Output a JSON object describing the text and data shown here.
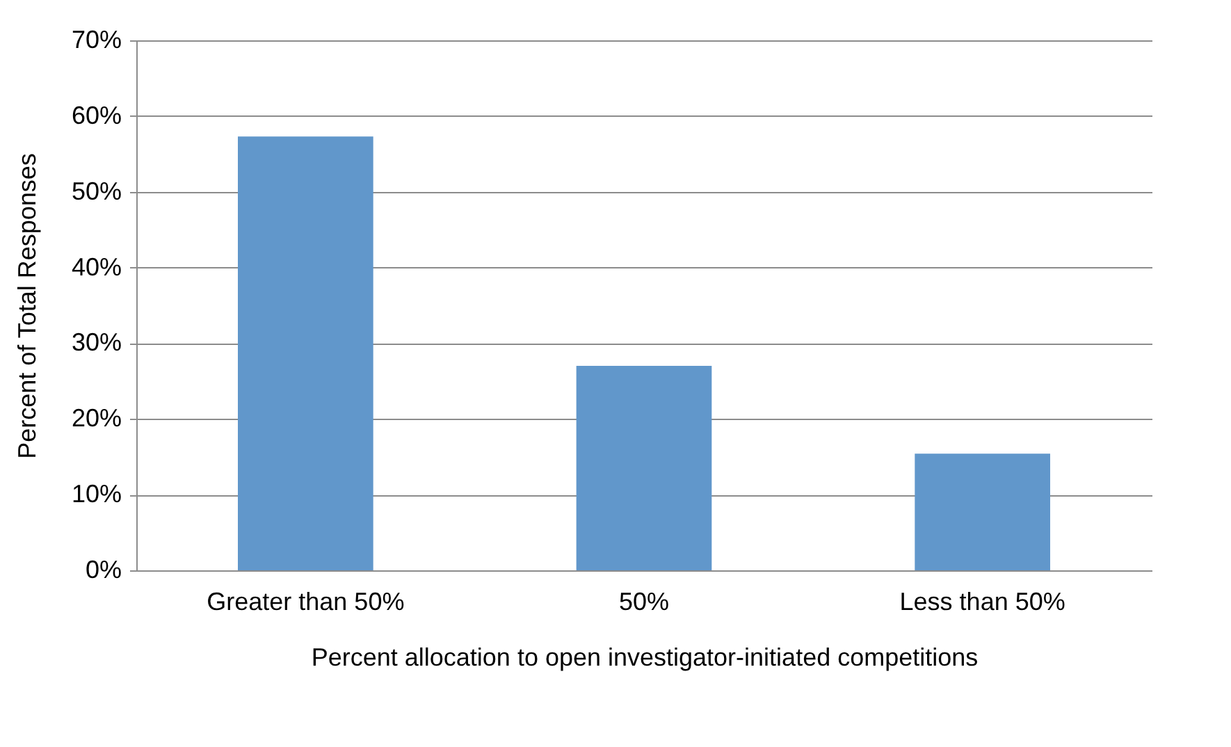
{
  "chart_data": {
    "type": "bar",
    "xlabel": "Percent allocation to open investigator-initiated competitions",
    "ylabel": "Percent of Total Responses",
    "categories": [
      "Greater than 50%",
      "50%",
      "Less than 50%"
    ],
    "values": [
      57.3,
      27.0,
      15.4
    ],
    "color": "#6197cb",
    "ylim": [
      0,
      70
    ],
    "yticks": [
      {
        "value": 0,
        "label": "0%"
      },
      {
        "value": 10,
        "label": "10%"
      },
      {
        "value": 20,
        "label": "20%"
      },
      {
        "value": 30,
        "label": "30%"
      },
      {
        "value": 40,
        "label": "40%"
      },
      {
        "value": 50,
        "label": "50%"
      },
      {
        "value": 60,
        "label": "60%"
      },
      {
        "value": 70,
        "label": "70%"
      }
    ],
    "grid": "y"
  }
}
